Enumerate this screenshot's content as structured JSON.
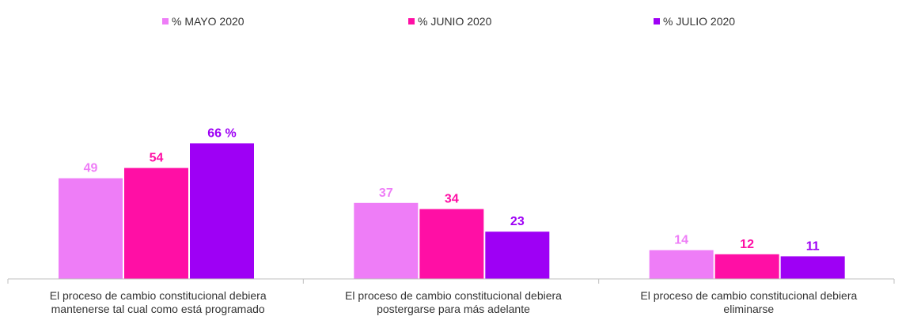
{
  "chart_data": {
    "type": "bar",
    "categories": [
      [
        "El proceso de cambio constitucional debiera",
        "mantenerse tal cual como está programado"
      ],
      [
        "El proceso de cambio constitucional debiera",
        "postergarse para más adelante"
      ],
      [
        "El proceso de cambio constitucional debiera",
        "eliminarse"
      ]
    ],
    "series": [
      {
        "name": "% MAYO 2020",
        "color": "#EE7DF7",
        "values": [
          49,
          37,
          14
        ],
        "labels": [
          "49",
          "37",
          "14"
        ]
      },
      {
        "name": "% JUNIO 2020",
        "color": "#FF0FA5",
        "values": [
          54,
          34,
          12
        ],
        "labels": [
          "54",
          "34",
          "12"
        ]
      },
      {
        "name": "% JULIO 2020",
        "color": "#9E00F5",
        "values": [
          66,
          23,
          11
        ],
        "labels": [
          "66 %",
          "23",
          "11"
        ]
      }
    ],
    "ylim": [
      0,
      100
    ],
    "grid": false,
    "legend_position": "top"
  }
}
